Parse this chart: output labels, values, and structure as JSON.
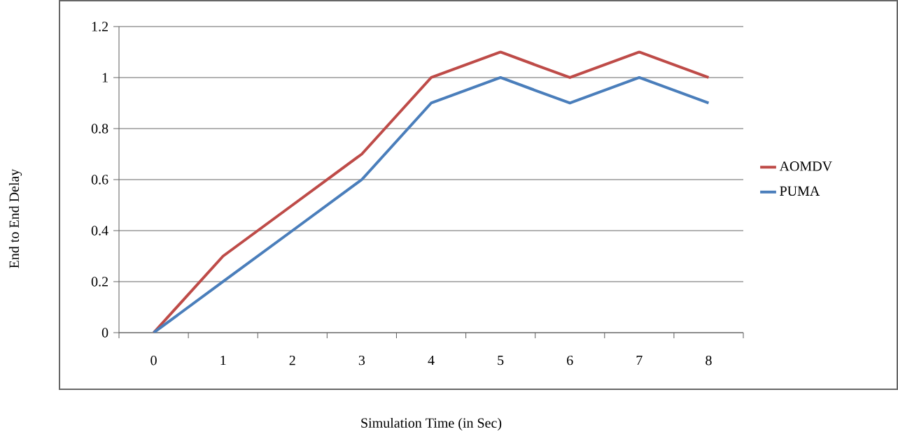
{
  "chart_data": {
    "type": "line",
    "xlabel": "Simulation Time (in Sec)",
    "ylabel": "End to End  Delay",
    "categories": [
      "0",
      "1",
      "2",
      "3",
      "4",
      "5",
      "6",
      "7",
      "8"
    ],
    "series": [
      {
        "name": "AOMDV",
        "color": "#be4b48",
        "values": [
          0,
          0.3,
          0.5,
          0.7,
          1,
          1.1,
          1,
          1.1,
          1
        ]
      },
      {
        "name": "PUMA",
        "color": "#4a7ebb",
        "values": [
          0,
          0.2,
          0.4,
          0.6,
          0.9,
          1,
          0.9,
          1,
          0.9
        ]
      }
    ],
    "ylim": [
      0,
      1.2
    ],
    "yticks": [
      0,
      0.2,
      0.4,
      0.6,
      0.8,
      1,
      1.2
    ],
    "grid": "y",
    "legend": "right",
    "marker": "none",
    "line_style": "solid"
  }
}
